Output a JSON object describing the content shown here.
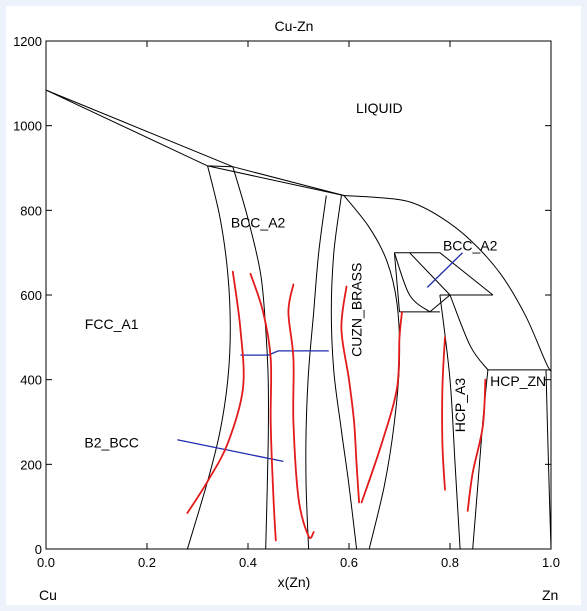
{
  "chart_data": {
    "type": "line",
    "title": "Cu-Zn",
    "xlabel": "x(Zn)",
    "ylabel": "",
    "xlim": [
      0,
      1
    ],
    "ylim": [
      0,
      1200
    ],
    "x_ticks": [
      {
        "value": 0,
        "label": "0.0"
      },
      {
        "value": 0.2,
        "label": "0.2"
      },
      {
        "value": 0.4,
        "label": "0.4"
      },
      {
        "value": 0.6,
        "label": "0.6"
      },
      {
        "value": 0.8,
        "label": "0.8"
      },
      {
        "value": 1.0,
        "label": "1.0"
      }
    ],
    "y_ticks": [
      {
        "value": 0,
        "label": "0"
      },
      {
        "value": 200,
        "label": "200"
      },
      {
        "value": 400,
        "label": "400"
      },
      {
        "value": 600,
        "label": "600"
      },
      {
        "value": 800,
        "label": "800"
      },
      {
        "value": 1000,
        "label": "1000"
      },
      {
        "value": 1200,
        "label": "1200"
      }
    ],
    "end_labels": {
      "left": "Cu",
      "right": "Zn"
    },
    "grid": false,
    "phase_labels": [
      {
        "text": "LIQUID",
        "x": 0.66,
        "y": 1030,
        "rotate": false
      },
      {
        "text": "BCC_A2",
        "x": 0.42,
        "y": 760,
        "rotate": false
      },
      {
        "text": "FCC_A1",
        "x": 0.13,
        "y": 520,
        "rotate": false
      },
      {
        "text": "CUZN_BRASS",
        "x": 0.625,
        "y": 565,
        "rotate": true
      },
      {
        "text": "BCC_A2",
        "x": 0.84,
        "y": 705,
        "rotate": false
      },
      {
        "text": "HCP_A3",
        "x": 0.83,
        "y": 340,
        "rotate": true
      },
      {
        "text": "HCP_ZN",
        "x": 0.935,
        "y": 385,
        "rotate": false
      },
      {
        "text": "B2_BCC",
        "x": 0.13,
        "y": 240,
        "rotate": false
      }
    ],
    "phase_boundaries": [
      {
        "points": [
          [
            0,
            1084
          ],
          [
            0.32,
            905
          ]
        ]
      },
      {
        "points": [
          [
            0,
            1084
          ],
          [
            0.37,
            903
          ]
        ]
      },
      {
        "points": [
          [
            0.32,
            905
          ],
          [
            0.37,
            903
          ]
        ]
      },
      {
        "points": [
          [
            0.37,
            903
          ],
          [
            0.59,
            835
          ]
        ]
      },
      {
        "points": [
          [
            0.32,
            905
          ],
          [
            0.59,
            835
          ]
        ]
      },
      {
        "points": [
          [
            0.59,
            835
          ],
          [
            0.66,
            830
          ],
          [
            0.72,
            820
          ],
          [
            0.78,
            785
          ],
          [
            0.84,
            730
          ],
          [
            0.9,
            650
          ],
          [
            0.95,
            550
          ],
          [
            0.99,
            440
          ],
          [
            1.0,
            420
          ]
        ]
      },
      {
        "points": [
          [
            0.32,
            905
          ],
          [
            0.345,
            780
          ],
          [
            0.36,
            650
          ],
          [
            0.365,
            520
          ],
          [
            0.36,
            400
          ],
          [
            0.345,
            280
          ],
          [
            0.32,
            160
          ],
          [
            0.28,
            0
          ]
        ]
      },
      {
        "points": [
          [
            0.37,
            903
          ],
          [
            0.4,
            780
          ],
          [
            0.425,
            650
          ],
          [
            0.435,
            520
          ],
          [
            0.44,
            400
          ],
          [
            0.44,
            250
          ],
          [
            0.435,
            0
          ]
        ]
      },
      {
        "points": [
          [
            0.555,
            835
          ],
          [
            0.54,
            700
          ],
          [
            0.53,
            560
          ],
          [
            0.52,
            420
          ],
          [
            0.515,
            280
          ],
          [
            0.515,
            150
          ],
          [
            0.52,
            0
          ]
        ]
      },
      {
        "points": [
          [
            0.585,
            835
          ],
          [
            0.57,
            700
          ],
          [
            0.565,
            560
          ],
          [
            0.57,
            420
          ],
          [
            0.585,
            280
          ],
          [
            0.6,
            150
          ],
          [
            0.615,
            0
          ]
        ]
      },
      {
        "points": [
          [
            0.59,
            835
          ],
          [
            0.64,
            760
          ],
          [
            0.675,
            680
          ],
          [
            0.695,
            580
          ],
          [
            0.7,
            450
          ],
          [
            0.69,
            300
          ],
          [
            0.67,
            150
          ],
          [
            0.64,
            0
          ]
        ]
      },
      {
        "points": [
          [
            0.69,
            700
          ],
          [
            0.7,
            560
          ]
        ]
      },
      {
        "points": [
          [
            0.69,
            700
          ],
          [
            0.78,
            700
          ]
        ]
      },
      {
        "points": [
          [
            0.72,
            700
          ],
          [
            0.8,
            600
          ]
        ]
      },
      {
        "points": [
          [
            0.69,
            700
          ],
          [
            0.72,
            600
          ],
          [
            0.76,
            560
          ]
        ]
      },
      {
        "points": [
          [
            0.7,
            560
          ],
          [
            0.78,
            560
          ]
        ]
      },
      {
        "points": [
          [
            0.76,
            560
          ],
          [
            0.8,
            600
          ]
        ]
      },
      {
        "points": [
          [
            0.78,
            600
          ],
          [
            0.885,
            600
          ]
        ]
      },
      {
        "points": [
          [
            0.78,
            700
          ],
          [
            0.885,
            600
          ]
        ]
      },
      {
        "points": [
          [
            0.78,
            600
          ],
          [
            0.8,
            400
          ],
          [
            0.81,
            200
          ],
          [
            0.82,
            0
          ]
        ]
      },
      {
        "points": [
          [
            0.8,
            600
          ],
          [
            0.84,
            480
          ],
          [
            0.875,
            423
          ]
        ]
      },
      {
        "points": [
          [
            0.875,
            423
          ],
          [
            0.865,
            300
          ],
          [
            0.855,
            150
          ],
          [
            0.845,
            0
          ]
        ]
      },
      {
        "points": [
          [
            0.875,
            423
          ],
          [
            1.0,
            423
          ]
        ]
      },
      {
        "points": [
          [
            0.99,
            423
          ],
          [
            0.995,
            200
          ],
          [
            1.0,
            0
          ]
        ]
      }
    ],
    "tie_lines": [
      {
        "color": "#1f2bb0",
        "points": [
          [
            0.385,
            458
          ],
          [
            0.44,
            458
          ],
          [
            0.46,
            468
          ],
          [
            0.56,
            468
          ]
        ]
      },
      {
        "color": "#1f2bb0",
        "points": [
          [
            0.26,
            258
          ],
          [
            0.47,
            207
          ]
        ]
      },
      {
        "color": "#1f2bb0",
        "points": [
          [
            0.755,
            618
          ],
          [
            0.825,
            700
          ]
        ]
      }
    ],
    "hand_drawn_lines": [
      {
        "color": "#e31a1a",
        "points": [
          [
            0.28,
            85
          ],
          [
            0.32,
            160
          ],
          [
            0.36,
            250
          ],
          [
            0.39,
            380
          ],
          [
            0.385,
            520
          ],
          [
            0.37,
            655
          ]
        ]
      },
      {
        "color": "#e31a1a",
        "points": [
          [
            0.405,
            650
          ],
          [
            0.43,
            560
          ],
          [
            0.445,
            450
          ],
          [
            0.445,
            300
          ],
          [
            0.45,
            130
          ],
          [
            0.455,
            20
          ]
        ]
      },
      {
        "color": "#e31a1a",
        "points": [
          [
            0.49,
            625
          ],
          [
            0.48,
            560
          ],
          [
            0.49,
            450
          ],
          [
            0.49,
            300
          ],
          [
            0.5,
            120
          ],
          [
            0.52,
            30
          ],
          [
            0.53,
            40
          ]
        ]
      },
      {
        "color": "#e31a1a",
        "points": [
          [
            0.595,
            620
          ],
          [
            0.585,
            520
          ],
          [
            0.6,
            400
          ],
          [
            0.61,
            300
          ],
          [
            0.615,
            200
          ],
          [
            0.62,
            110
          ]
        ]
      },
      {
        "color": "#e31a1a",
        "points": [
          [
            0.625,
            110
          ],
          [
            0.665,
            250
          ],
          [
            0.695,
            380
          ],
          [
            0.7,
            500
          ],
          [
            0.705,
            560
          ]
        ]
      },
      {
        "color": "#e31a1a",
        "points": [
          [
            0.79,
            500
          ],
          [
            0.785,
            380
          ],
          [
            0.785,
            250
          ],
          [
            0.79,
            140
          ]
        ]
      },
      {
        "color": "#e31a1a",
        "points": [
          [
            0.835,
            90
          ],
          [
            0.845,
            180
          ],
          [
            0.865,
            290
          ],
          [
            0.87,
            400
          ]
        ]
      }
    ]
  }
}
